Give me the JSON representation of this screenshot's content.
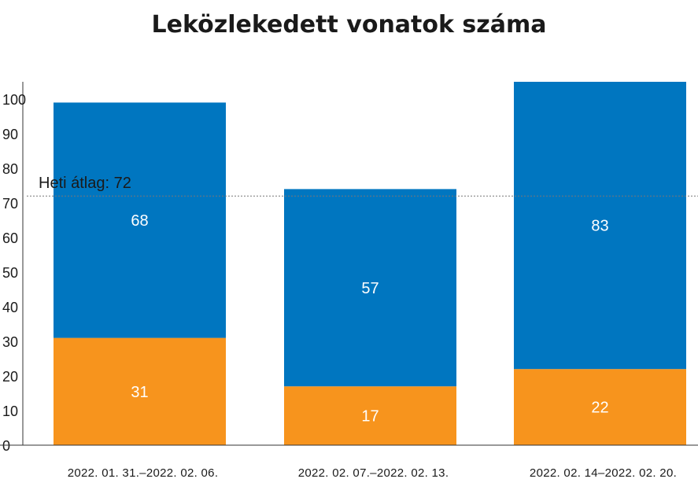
{
  "chart_data": {
    "type": "bar",
    "stacked": true,
    "title": "Leközlekedett vonatok száma",
    "categories": [
      "2022. 01. 31.–2022. 02. 06.",
      "2022. 02. 07.–2022. 02. 13.",
      "2022. 02. 14–2022. 02. 20."
    ],
    "series": [
      {
        "values": [
          31,
          17,
          22
        ],
        "color": "#f7941d"
      },
      {
        "values": [
          68,
          57,
          83
        ],
        "color": "#0076c0"
      }
    ],
    "ylim": [
      0,
      105
    ],
    "yticks": [
      0,
      10,
      20,
      30,
      40,
      50,
      60,
      70,
      80,
      90,
      100
    ],
    "average": {
      "label": "Heti átlag: 72",
      "value": 72
    },
    "grid": false,
    "legend": "none"
  }
}
